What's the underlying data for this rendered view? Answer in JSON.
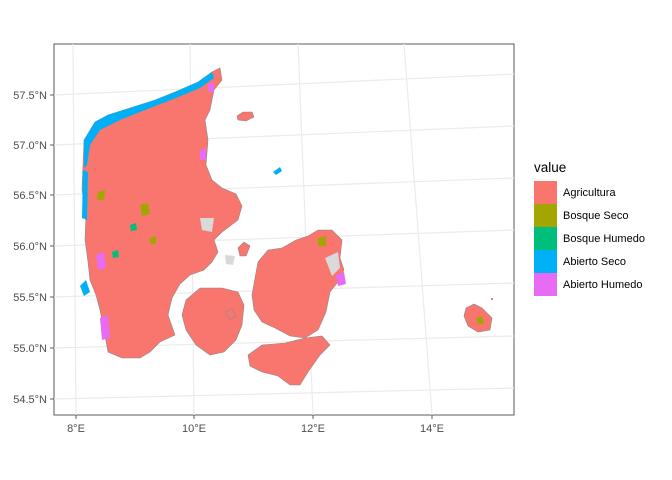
{
  "chart_data": {
    "type": "map",
    "title": "",
    "xlabel": "",
    "ylabel": "",
    "x_ticks": [
      "8°E",
      "10°E",
      "12°E",
      "14°E"
    ],
    "y_ticks": [
      "57.5°N",
      "57.0°N",
      "56.5°N",
      "56.0°N",
      "55.5°N",
      "55.0°N",
      "54.5°N"
    ],
    "xlim": [
      7.9,
      15.3
    ],
    "ylim": [
      54.35,
      57.85
    ],
    "grid": true,
    "legend_position": "right",
    "legend": {
      "title": "value",
      "items": [
        {
          "label": "Agricultura",
          "color": "#F8766D"
        },
        {
          "label": "Bosque Seco",
          "color": "#A3A500"
        },
        {
          "label": "Bosque Humedo",
          "color": "#00BF7D"
        },
        {
          "label": "Abierto Seco",
          "color": "#00B0F6"
        },
        {
          "label": "Abierto Humedo",
          "color": "#E76BF3"
        }
      ]
    },
    "background_land_color": "#d9d9d9"
  }
}
